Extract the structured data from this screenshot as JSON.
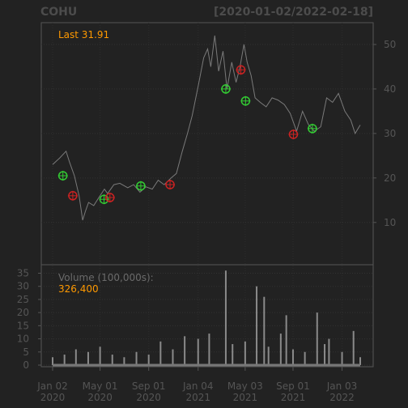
{
  "chart_data": {
    "type": "line",
    "title": "COHU",
    "date_range_label": "[2020-01-02/2022-02-18]",
    "last_label": "Last 31.91",
    "price_axis": {
      "ticks": [
        10,
        20,
        30,
        40,
        50
      ],
      "ylim": [
        0.5,
        54.9
      ]
    },
    "volume_axis": {
      "ticks": [
        0,
        5,
        10,
        15,
        20,
        25,
        30,
        35
      ],
      "ylim": [
        0,
        37
      ]
    },
    "volume_label": "Volume (100,000s):",
    "volume_value": "326,400",
    "x_axis": {
      "ticks": [
        {
          "date": "2020-01-02",
          "line1": "Jan 02",
          "line2": "2020"
        },
        {
          "date": "2020-05-01",
          "line1": "May 01",
          "line2": "2020"
        },
        {
          "date": "2020-09-01",
          "line1": "Sep 01",
          "line2": "2020"
        },
        {
          "date": "2021-01-04",
          "line1": "Jan 04",
          "line2": "2021"
        },
        {
          "date": "2021-05-03",
          "line1": "May 03",
          "line2": "2021"
        },
        {
          "date": "2021-09-01",
          "line1": "Sep 01",
          "line2": "2021"
        },
        {
          "date": "2022-01-03",
          "line1": "Jan 03",
          "line2": "2022"
        }
      ]
    },
    "price_series": {
      "name": "COHU",
      "x": [
        "2020-01-02",
        "2020-01-20",
        "2020-02-05",
        "2020-02-14",
        "2020-02-26",
        "2020-03-09",
        "2020-03-18",
        "2020-03-25",
        "2020-04-02",
        "2020-04-15",
        "2020-04-28",
        "2020-05-12",
        "2020-05-20",
        "2020-06-05",
        "2020-06-20",
        "2020-07-10",
        "2020-07-25",
        "2020-08-10",
        "2020-08-25",
        "2020-09-10",
        "2020-09-25",
        "2020-10-10",
        "2020-10-28",
        "2020-11-10",
        "2020-11-25",
        "2020-12-08",
        "2020-12-20",
        "2021-01-05",
        "2021-01-18",
        "2021-01-28",
        "2021-02-05",
        "2021-02-15",
        "2021-02-25",
        "2021-03-08",
        "2021-03-18",
        "2021-03-30",
        "2021-04-10",
        "2021-04-20",
        "2021-04-30",
        "2021-05-08",
        "2021-05-18",
        "2021-05-28",
        "2021-06-10",
        "2021-06-25",
        "2021-07-10",
        "2021-07-25",
        "2021-08-10",
        "2021-08-25",
        "2021-09-10",
        "2021-09-25",
        "2021-10-10",
        "2021-10-25",
        "2021-11-10",
        "2021-11-25",
        "2021-12-10",
        "2021-12-25",
        "2022-01-10",
        "2022-01-25",
        "2022-02-05",
        "2022-02-18"
      ],
      "y": [
        23,
        24.5,
        26,
        23.5,
        20.5,
        16,
        10.5,
        12.5,
        14.5,
        13.8,
        15.6,
        17.5,
        16.5,
        18.5,
        18.8,
        17.8,
        18.5,
        16.8,
        18,
        17.5,
        19.5,
        18.5,
        20,
        21,
        26,
        30,
        34,
        41,
        47,
        49,
        45,
        52,
        44,
        48.5,
        40,
        46,
        41.5,
        45,
        50,
        46,
        43,
        38,
        37,
        36,
        38,
        37.5,
        36.5,
        34.5,
        30.5,
        35,
        32,
        30.5,
        31.5,
        38,
        37,
        39,
        35,
        33,
        30,
        31.91
      ]
    },
    "signals": {
      "buy": [
        {
          "x": "2020-01-28",
          "y": 20.5
        },
        {
          "x": "2020-05-11",
          "y": 15.2
        },
        {
          "x": "2020-08-12",
          "y": 18.2
        },
        {
          "x": "2021-03-15",
          "y": 40
        },
        {
          "x": "2021-05-04",
          "y": 37.3
        },
        {
          "x": "2021-10-20",
          "y": 31.1
        }
      ],
      "sell": [
        {
          "x": "2020-02-22",
          "y": 16
        },
        {
          "x": "2020-05-26",
          "y": 15.6
        },
        {
          "x": "2020-10-25",
          "y": 18.5
        },
        {
          "x": "2021-04-22",
          "y": 44.3
        },
        {
          "x": "2021-09-02",
          "y": 29.8
        }
      ]
    },
    "volume_series": {
      "x": [
        "2020-01-02",
        "2020-02-01",
        "2020-03-01",
        "2020-04-01",
        "2020-05-01",
        "2020-06-01",
        "2020-07-01",
        "2020-08-01",
        "2020-09-01",
        "2020-10-01",
        "2020-11-01",
        "2020-12-01",
        "2021-01-04",
        "2021-02-01",
        "2021-03-15",
        "2021-04-01",
        "2021-05-03",
        "2021-06-01",
        "2021-06-20",
        "2021-07-01",
        "2021-08-01",
        "2021-08-15",
        "2021-09-01",
        "2021-10-01",
        "2021-11-01",
        "2021-11-20",
        "2021-12-01",
        "2022-01-03",
        "2022-02-01",
        "2022-02-18"
      ],
      "y": [
        3,
        4,
        6,
        5,
        7,
        4,
        3,
        5,
        4,
        9,
        6,
        11,
        10,
        12,
        36,
        8,
        9,
        30,
        26,
        7,
        12,
        19,
        6,
        5,
        20,
        8,
        10,
        5,
        13,
        3
      ]
    }
  }
}
